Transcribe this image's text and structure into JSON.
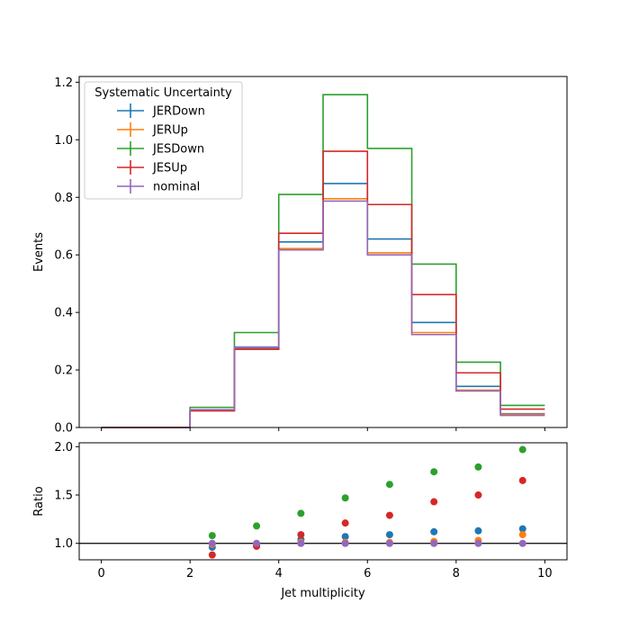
{
  "chart_data": [
    {
      "type": "histogram-step",
      "ylabel": "Events",
      "xlim": [
        -0.5,
        10.5
      ],
      "ylim": [
        0,
        1.22
      ],
      "bin_edges": [
        0,
        1,
        2,
        3,
        4,
        5,
        6,
        7,
        8,
        9,
        10
      ],
      "yticks": [
        "0.0",
        "0.2",
        "0.4",
        "0.6",
        "0.8",
        "1.0",
        "1.2"
      ],
      "legend": {
        "title": "Systematic Uncertainty",
        "placement": "upper-left"
      },
      "series": [
        {
          "name": "JERDown",
          "color": "#1f77b4",
          "values": [
            0,
            0,
            0.06,
            0.275,
            0.645,
            0.848,
            0.655,
            0.365,
            0.143,
            0.048
          ]
        },
        {
          "name": "JERUp",
          "color": "#ff7f0e",
          "values": [
            0,
            0,
            0.058,
            0.272,
            0.622,
            0.795,
            0.607,
            0.33,
            0.13,
            0.046
          ]
        },
        {
          "name": "JESDown",
          "color": "#2ca02c",
          "values": [
            0,
            0,
            0.07,
            0.33,
            0.81,
            1.157,
            0.97,
            0.568,
            0.227,
            0.077
          ]
        },
        {
          "name": "JESUp",
          "color": "#d62728",
          "values": [
            0,
            0,
            0.058,
            0.272,
            0.675,
            0.96,
            0.775,
            0.462,
            0.19,
            0.064
          ]
        },
        {
          "name": "nominal",
          "color": "#9467bd",
          "values": [
            0,
            0,
            0.062,
            0.28,
            0.617,
            0.787,
            0.6,
            0.323,
            0.127,
            0.042
          ]
        }
      ]
    },
    {
      "type": "scatter",
      "xlabel": "Jet multiplicity",
      "ylabel": "Ratio",
      "xlim": [
        -0.5,
        10.5
      ],
      "ylim": [
        0.83,
        2.04
      ],
      "xticks": [
        "0",
        "2",
        "4",
        "6",
        "8",
        "10"
      ],
      "yticks": [
        "1.0",
        "1.5",
        "2.0"
      ],
      "reference_line": 1.0,
      "x": [
        2.5,
        3.5,
        4.5,
        5.5,
        6.5,
        7.5,
        8.5,
        9.5
      ],
      "series": [
        {
          "name": "JERDown",
          "color": "#1f77b4",
          "values": [
            0.96,
            0.98,
            1.04,
            1.07,
            1.09,
            1.12,
            1.13,
            1.15
          ]
        },
        {
          "name": "JERUp",
          "color": "#ff7f0e",
          "values": [
            0.99,
            0.99,
            1.01,
            1.01,
            1.01,
            1.02,
            1.03,
            1.09
          ]
        },
        {
          "name": "JESDown",
          "color": "#2ca02c",
          "values": [
            1.08,
            1.18,
            1.31,
            1.47,
            1.61,
            1.74,
            1.79,
            1.97
          ]
        },
        {
          "name": "JESUp",
          "color": "#d62728",
          "values": [
            0.88,
            0.97,
            1.09,
            1.21,
            1.29,
            1.43,
            1.5,
            1.65
          ]
        },
        {
          "name": "nominal",
          "color": "#9467bd",
          "values": [
            1.0,
            1.0,
            1.0,
            1.0,
            1.0,
            1.0,
            1.0,
            1.0
          ]
        }
      ]
    }
  ]
}
